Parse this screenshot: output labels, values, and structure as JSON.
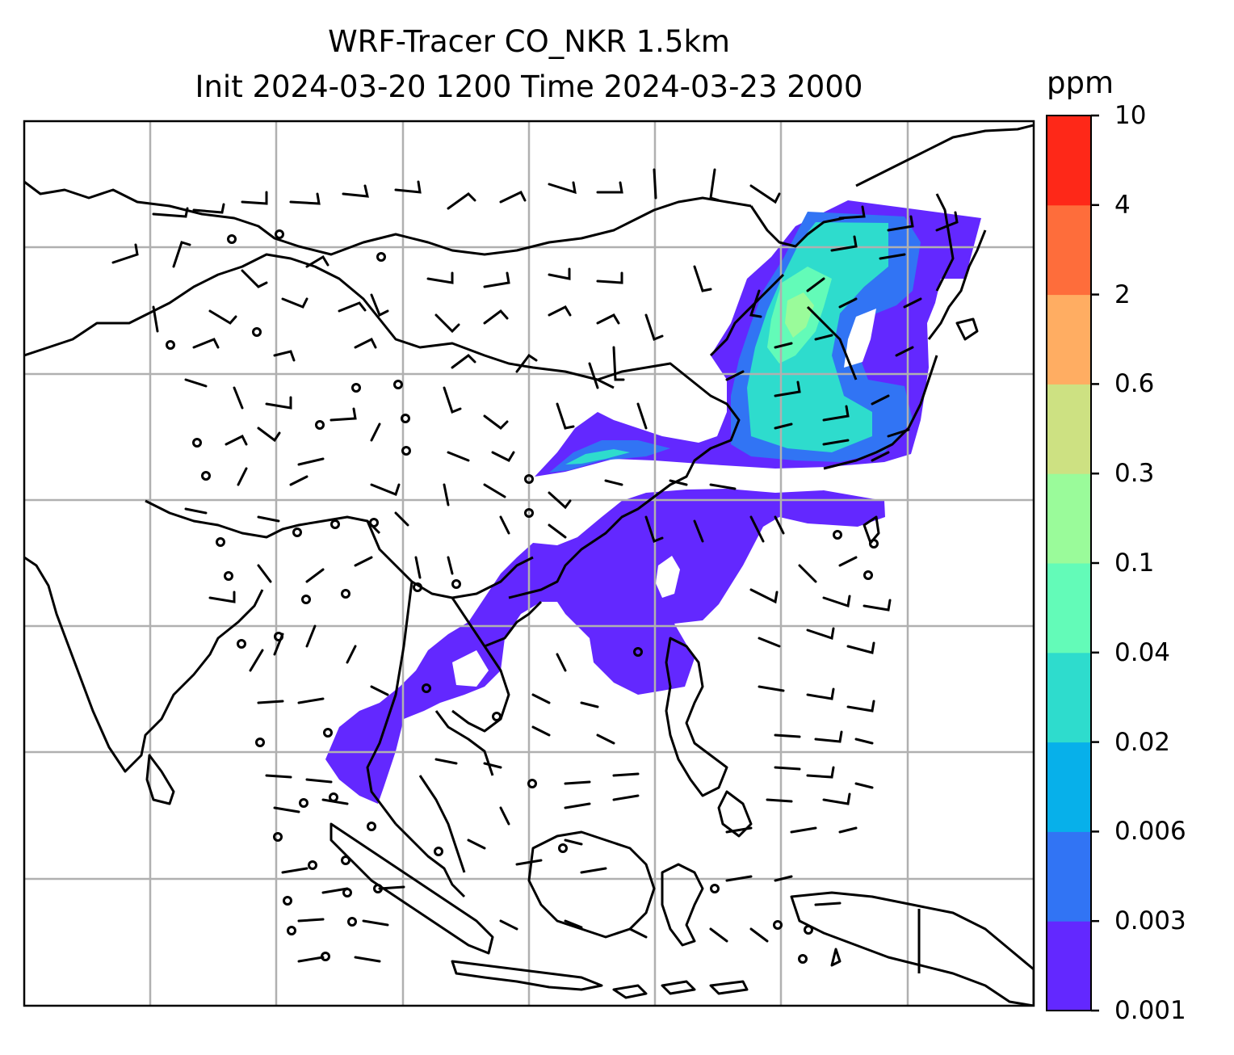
{
  "title": {
    "line1": "WRF-Tracer CO_NKR 1.5km",
    "line2": "Init 2024-03-20 1200 Time 2024-03-23 2000"
  },
  "colorbar": {
    "unit": "ppm",
    "levels": [
      "0.001",
      "0.003",
      "0.006",
      "0.02",
      "0.04",
      "0.1",
      "0.3",
      "0.6",
      "2",
      "4",
      "10"
    ],
    "colors": [
      "#6328ff",
      "#3174f4",
      "#07b0ea",
      "#2edccd",
      "#63fbb8",
      "#9afb9a",
      "#cde182",
      "#ffad62",
      "#fe6d3b",
      "#fe2818"
    ]
  },
  "map": {
    "background": "#ffffff",
    "gridline_color": "#b0b0b0",
    "coastline_color": "#000000",
    "wind_barbs": "black barbs with calm-wind circles"
  }
}
